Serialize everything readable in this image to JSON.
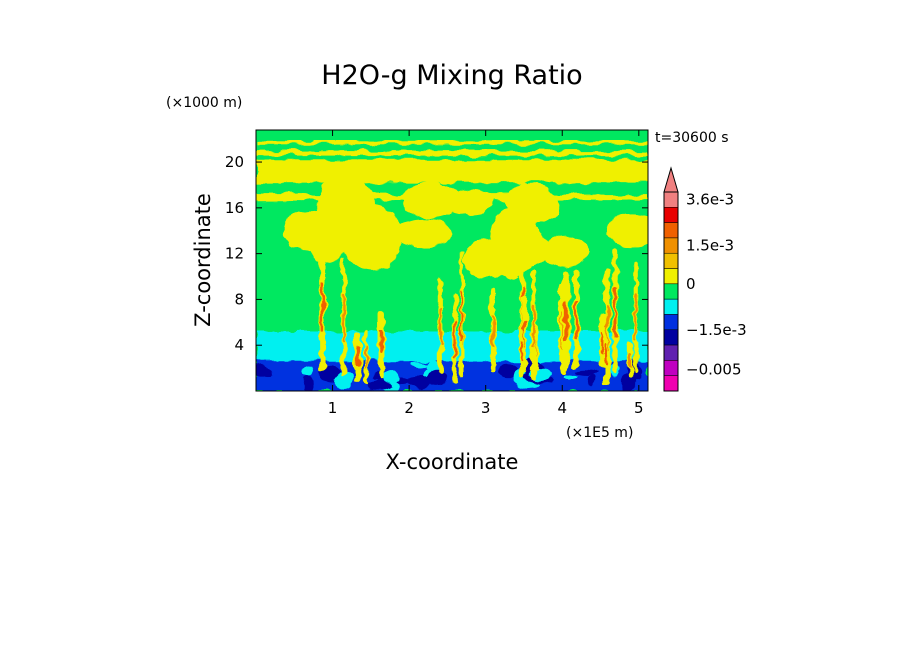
{
  "chart_data": {
    "type": "heatmap",
    "title": "H2O-g Mixing Ratio",
    "xlabel": "X-coordinate",
    "ylabel": "Z-coordinate",
    "x_unit": "(×1E5 m)",
    "y_unit": "(×1000 m)",
    "time_label": "t=30600 s",
    "xlim": [
      0,
      5.12
    ],
    "ylim": [
      0,
      22.8
    ],
    "x_ticks": [
      1,
      2,
      3,
      4,
      5
    ],
    "x_tick_labels": [
      "1",
      "2",
      "3",
      "4",
      "5"
    ],
    "y_ticks": [
      4,
      8,
      12,
      16,
      20
    ],
    "y_tick_labels": [
      "4",
      "8",
      "12",
      "16",
      "20"
    ],
    "colorbar": {
      "labels": [
        {
          "text": "3.6e-3",
          "value": 0.0036
        },
        {
          "text": "1.5e-3",
          "value": 0.0015
        },
        {
          "text": "0",
          "value": 0
        },
        {
          "text": "−1.5e-3",
          "value": -0.0015
        },
        {
          "text": "−0.005",
          "value": -0.005
        }
      ],
      "levels": [
        {
          "color": "#f08080",
          "value": 0.0036
        },
        {
          "color": "#e80000",
          "value": 0.003
        },
        {
          "color": "#f06000",
          "value": 0.0024
        },
        {
          "color": "#f09000",
          "value": 0.0018
        },
        {
          "color": "#f0c000",
          "value": 0.0012
        },
        {
          "color": "#f0f000",
          "value": 0.0006
        },
        {
          "color": "#00e860",
          "value": 0.0
        },
        {
          "color": "#00f0f0",
          "value": -0.0006
        },
        {
          "color": "#0030e0",
          "value": -0.0012
        },
        {
          "color": "#0000a0",
          "value": -0.0018
        },
        {
          "color": "#6020b0",
          "value": -0.003
        },
        {
          "color": "#c000c0",
          "value": -0.004
        },
        {
          "color": "#f000b0",
          "value": -0.006
        }
      ]
    },
    "field_regions": {
      "background_color": "#00e860",
      "lower_band_color": "#00f0f0",
      "lower_band_top": 5.2,
      "surface_band_color": "#0030e0",
      "surface_band_top": 2.6,
      "upper_layer_color": "#f0f000",
      "upper_layer_band": [
        18.2,
        20.2
      ]
    }
  }
}
